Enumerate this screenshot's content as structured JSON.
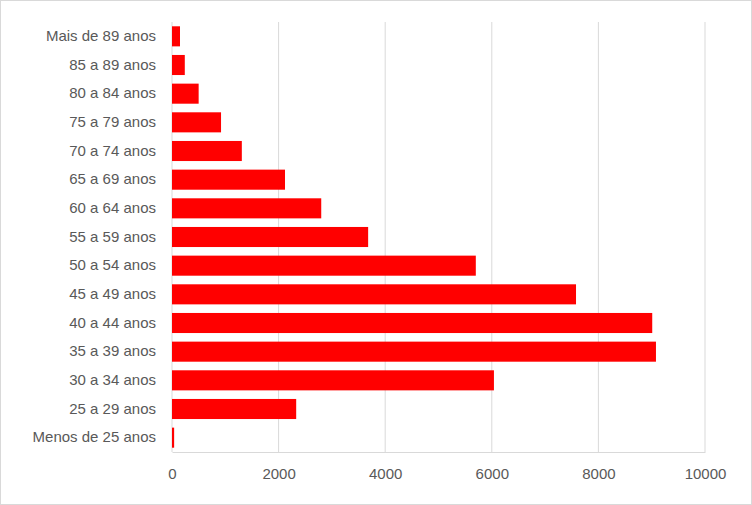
{
  "chart_data": {
    "type": "bar",
    "orientation": "horizontal",
    "categories": [
      "Menos de 25 anos",
      "25 a 29 anos",
      "30 a 34 anos",
      "35 a 39 anos",
      "40 a 44 anos",
      "45 a 49 anos",
      "50 a 54 anos",
      "55 a 59 anos",
      "60 a 64 anos",
      "65 a 69 anos",
      "70 a 74 anos",
      "75 a 79 anos",
      "80 a 84 anos",
      "85 a 89 anos",
      "Mais de 89 anos"
    ],
    "values": [
      40,
      2330,
      6040,
      9080,
      9010,
      7580,
      5700,
      3680,
      2800,
      2120,
      1310,
      920,
      500,
      240,
      150
    ],
    "color": "#ff0000",
    "xlim": [
      0,
      10000
    ],
    "xticks": [
      0,
      2000,
      4000,
      6000,
      8000,
      10000
    ],
    "grid": true
  }
}
